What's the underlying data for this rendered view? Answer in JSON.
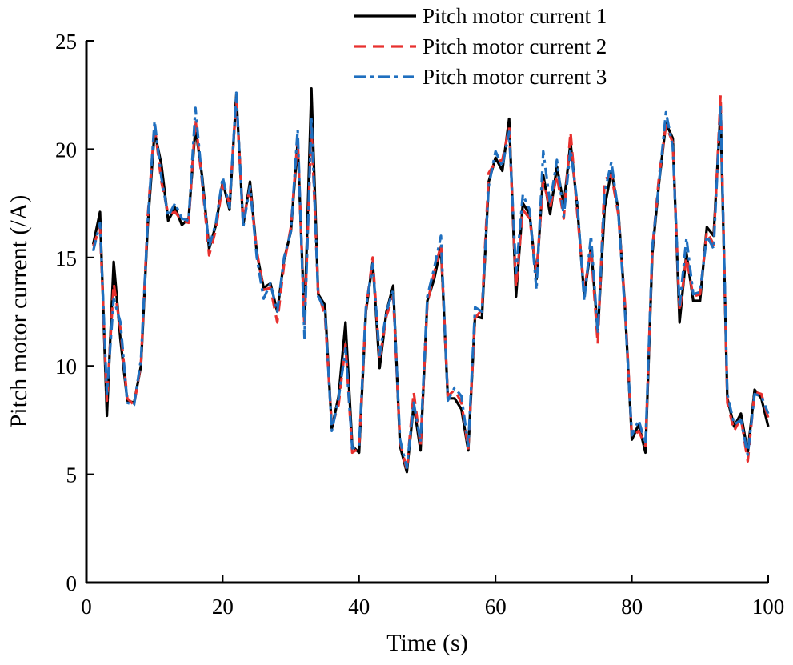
{
  "chart_data": {
    "type": "line",
    "xlabel": "Time (s)",
    "ylabel": "Pitch motor current (/A)",
    "xlim": [
      0,
      100
    ],
    "ylim": [
      0,
      25
    ],
    "xticks": [
      0,
      20,
      40,
      60,
      80,
      100
    ],
    "yticks": [
      0,
      5,
      10,
      15,
      20,
      25
    ],
    "grid": false,
    "legend_position": "top-right",
    "x": [
      1,
      2,
      3,
      4,
      5,
      6,
      7,
      8,
      9,
      10,
      11,
      12,
      13,
      14,
      15,
      16,
      17,
      18,
      19,
      20,
      21,
      22,
      23,
      24,
      25,
      26,
      27,
      28,
      29,
      30,
      31,
      32,
      33,
      34,
      35,
      36,
      37,
      38,
      39,
      40,
      41,
      42,
      43,
      44,
      45,
      46,
      47,
      48,
      49,
      50,
      51,
      52,
      53,
      54,
      55,
      56,
      57,
      58,
      59,
      60,
      61,
      62,
      63,
      64,
      65,
      66,
      67,
      68,
      69,
      70,
      71,
      72,
      73,
      74,
      75,
      76,
      77,
      78,
      79,
      80,
      81,
      82,
      83,
      84,
      85,
      86,
      87,
      88,
      89,
      90,
      91,
      92,
      93,
      94,
      95,
      96,
      97,
      98,
      99,
      100
    ],
    "series": [
      {
        "name": "Pitch motor current 1",
        "color": "#000000",
        "dash": "solid",
        "values": [
          15.6,
          17.1,
          7.7,
          14.8,
          11.2,
          8.4,
          8.3,
          10.0,
          16.5,
          20.8,
          19.3,
          16.7,
          17.3,
          16.5,
          16.8,
          21.0,
          18.7,
          15.4,
          16.5,
          18.5,
          17.2,
          22.5,
          16.5,
          18.5,
          15.2,
          13.6,
          13.8,
          12.5,
          14.9,
          16.2,
          20.3,
          12.0,
          22.8,
          13.3,
          12.8,
          7.1,
          8.6,
          12.0,
          6.3,
          6.0,
          12.5,
          14.8,
          9.9,
          12.5,
          13.7,
          6.3,
          5.1,
          8.2,
          6.1,
          13.0,
          14.0,
          15.5,
          8.5,
          8.5,
          8.0,
          6.1,
          12.3,
          12.2,
          18.5,
          19.6,
          19.0,
          21.4,
          13.2,
          17.5,
          17.0,
          14.0,
          18.8,
          17.0,
          19.2,
          17.4,
          20.3,
          17.3,
          13.2,
          15.5,
          11.5,
          17.3,
          19.0,
          17.2,
          12.6,
          6.6,
          7.3,
          6.0,
          15.2,
          18.5,
          21.2,
          20.5,
          12.0,
          15.2,
          13.0,
          13.0,
          16.4,
          16.0,
          21.8,
          8.5,
          7.2,
          7.8,
          6.0,
          8.9,
          8.5,
          7.2
        ]
      },
      {
        "name": "Pitch motor current 2",
        "color": "#e8302e",
        "dash": "dashed",
        "values": [
          15.5,
          16.4,
          8.4,
          13.8,
          11.7,
          8.5,
          8.2,
          10.1,
          16.9,
          21.1,
          18.5,
          17.0,
          17.1,
          16.7,
          16.6,
          21.4,
          18.4,
          15.1,
          16.3,
          18.4,
          17.5,
          22.3,
          16.7,
          18.2,
          15.3,
          13.5,
          13.6,
          12.0,
          14.7,
          16.4,
          20.5,
          11.8,
          21.0,
          13.4,
          12.3,
          7.2,
          8.2,
          11.0,
          6.0,
          6.2,
          12.6,
          15.0,
          10.3,
          12.3,
          13.2,
          6.5,
          5.2,
          8.8,
          6.3,
          12.9,
          14.3,
          15.6,
          8.6,
          8.9,
          8.3,
          6.2,
          12.2,
          12.6,
          18.9,
          19.4,
          19.5,
          21.0,
          13.6,
          17.2,
          16.8,
          14.3,
          18.5,
          17.3,
          18.8,
          16.8,
          20.8,
          17.0,
          13.5,
          15.4,
          11.0,
          18.6,
          18.8,
          17.0,
          12.8,
          6.7,
          7.0,
          6.3,
          15.4,
          18.8,
          21.1,
          20.3,
          12.5,
          15.0,
          13.2,
          13.3,
          16.2,
          15.6,
          22.5,
          8.3,
          7.0,
          7.6,
          5.6,
          8.8,
          8.7,
          7.6
        ]
      },
      {
        "name": "Pitch motor current 3",
        "color": "#1f6fbf",
        "dash": "dashdot",
        "values": [
          15.3,
          16.6,
          8.7,
          13.1,
          12.0,
          8.3,
          8.2,
          10.3,
          16.7,
          21.3,
          18.7,
          16.9,
          17.5,
          16.8,
          16.7,
          21.9,
          18.5,
          15.5,
          16.6,
          18.7,
          17.3,
          22.6,
          16.4,
          18.3,
          15.0,
          13.1,
          13.8,
          12.5,
          15.0,
          16.2,
          20.9,
          11.3,
          21.5,
          13.2,
          12.6,
          7.0,
          8.5,
          10.8,
          6.2,
          6.3,
          12.7,
          14.7,
          10.5,
          12.5,
          13.5,
          6.6,
          5.3,
          8.3,
          6.5,
          13.2,
          14.5,
          16.0,
          8.4,
          9.0,
          8.6,
          6.3,
          12.7,
          12.5,
          18.3,
          19.9,
          19.2,
          20.8,
          14.3,
          17.9,
          17.2,
          13.5,
          19.9,
          17.5,
          19.5,
          16.9,
          20.0,
          17.5,
          13.0,
          16.0,
          11.5,
          18.0,
          19.4,
          17.1,
          12.4,
          6.8,
          7.5,
          6.4,
          15.5,
          18.5,
          21.7,
          20.1,
          12.7,
          15.9,
          13.3,
          13.4,
          16.0,
          15.4,
          22.1,
          8.7,
          7.3,
          7.5,
          5.9,
          8.7,
          8.6,
          7.8
        ]
      }
    ]
  }
}
